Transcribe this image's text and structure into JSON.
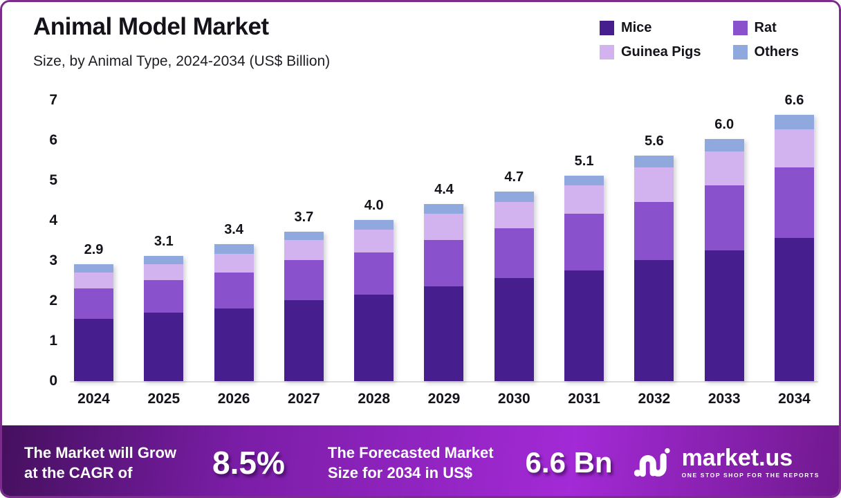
{
  "header": {
    "title": "Animal Model Market",
    "subtitle": "Size, by Animal Type, 2024-2034 (US$ Billion)"
  },
  "legend": [
    {
      "label": "Mice",
      "color": "#471E8D"
    },
    {
      "label": "Rat",
      "color": "#8952CC"
    },
    {
      "label": "Guinea Pigs",
      "color": "#D3B3EF"
    },
    {
      "label": "Others",
      "color": "#8FA9DE"
    }
  ],
  "chart_data": {
    "type": "bar",
    "stacked": true,
    "title": "Animal Model Market",
    "subtitle": "Size, by Animal Type, 2024-2034 (US$ Billion)",
    "xlabel": "",
    "ylabel": "US$ Billion",
    "ylim": [
      0,
      7
    ],
    "y_ticks": [
      "7",
      "6",
      "5",
      "4",
      "3",
      "2",
      "1",
      "0"
    ],
    "grid": false,
    "legend_position": "top-right",
    "categories": [
      "2024",
      "2025",
      "2026",
      "2027",
      "2028",
      "2029",
      "2030",
      "2031",
      "2032",
      "2033",
      "2034"
    ],
    "series": [
      {
        "name": "Mice",
        "color": "#471E8D",
        "values": [
          1.55,
          1.7,
          1.8,
          2.0,
          2.15,
          2.35,
          2.55,
          2.75,
          3.0,
          3.25,
          3.55
        ]
      },
      {
        "name": "Rat",
        "color": "#8952CC",
        "values": [
          0.75,
          0.8,
          0.9,
          1.0,
          1.05,
          1.15,
          1.25,
          1.4,
          1.45,
          1.6,
          1.75
        ]
      },
      {
        "name": "Guinea Pigs",
        "color": "#D3B3EF",
        "values": [
          0.4,
          0.4,
          0.45,
          0.5,
          0.55,
          0.65,
          0.65,
          0.7,
          0.85,
          0.85,
          0.95
        ]
      },
      {
        "name": "Others",
        "color": "#8FA9DE",
        "values": [
          0.2,
          0.2,
          0.25,
          0.2,
          0.25,
          0.25,
          0.25,
          0.25,
          0.3,
          0.3,
          0.35
        ]
      }
    ],
    "totals": [
      2.9,
      3.1,
      3.4,
      3.7,
      4.0,
      4.4,
      4.7,
      5.1,
      5.6,
      6.0,
      6.6
    ],
    "total_labels": [
      "2.9",
      "3.1",
      "3.4",
      "3.7",
      "4.0",
      "4.4",
      "4.7",
      "5.1",
      "5.6",
      "6.0",
      "6.6"
    ]
  },
  "footer": {
    "cagr_label_line1": "The Market will Grow",
    "cagr_label_line2": "at the CAGR of",
    "cagr_value": "8.5%",
    "forecast_label_line1": "The Forecasted Market",
    "forecast_label_line2": "Size for 2034 in US$",
    "forecast_value": "6.6 Bn",
    "brand": {
      "name": "market.us",
      "tagline": "ONE STOP SHOP FOR THE REPORTS"
    }
  },
  "colors": {
    "border": "#7C2C8D",
    "text": "#15121a",
    "axis_line": "#dcdcdc",
    "footer_gradient": [
      "#45105E",
      "#7A1DA6",
      "#A32AD6",
      "#71198F"
    ]
  }
}
